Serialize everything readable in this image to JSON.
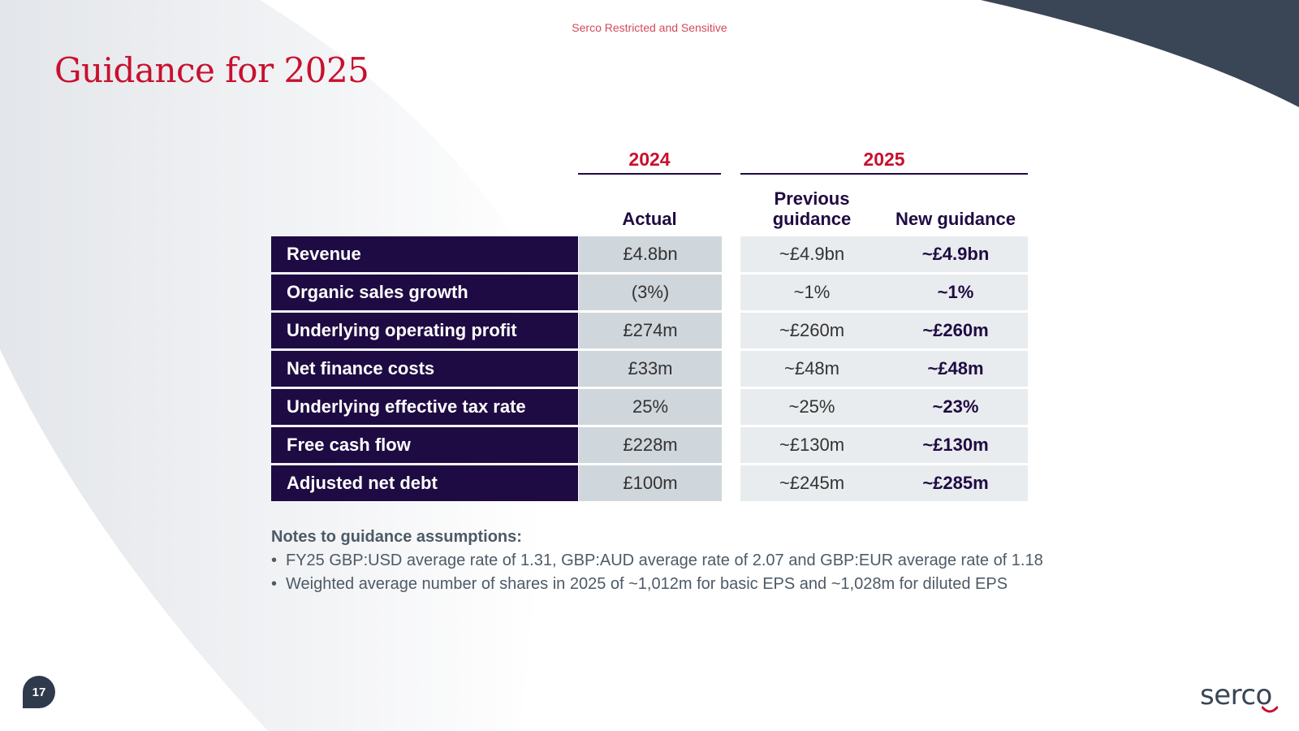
{
  "classification": "Serco Restricted and Sensitive",
  "title": "Guidance for 2025",
  "table": {
    "year_2024": "2024",
    "year_2025": "2025",
    "col_actual": "Actual",
    "col_previous": "Previous guidance",
    "col_new": "New guidance",
    "rows": [
      {
        "label": "Revenue",
        "actual": "£4.8bn",
        "previous": "~£4.9bn",
        "new": "~£4.9bn"
      },
      {
        "label": "Organic sales growth",
        "actual": "(3%)",
        "previous": "~1%",
        "new": "~1%"
      },
      {
        "label": "Underlying operating profit",
        "actual": "£274m",
        "previous": "~£260m",
        "new": "~£260m"
      },
      {
        "label": "Net finance costs",
        "actual": "£33m",
        "previous": "~£48m",
        "new": "~£48m"
      },
      {
        "label": "Underlying effective tax rate",
        "actual": "25%",
        "previous": "~25%",
        "new": "~23%"
      },
      {
        "label": "Free cash flow",
        "actual": "£228m",
        "previous": "~£130m",
        "new": "~£130m"
      },
      {
        "label": "Adjusted net debt",
        "actual": "£100m",
        "previous": "~£245m",
        "new": "~£285m"
      }
    ]
  },
  "notes": {
    "title": "Notes to guidance assumptions:",
    "items": [
      "FY25 GBP:USD average rate of 1.31, GBP:AUD average rate of 2.07 and GBP:EUR average rate of 1.18",
      "Weighted average number of shares in 2025 of ~1,012m for basic EPS and ~1,028m for diluted EPS"
    ]
  },
  "page_number": "17",
  "logo_text": "serco",
  "colors": {
    "accent_red": "#c8102e",
    "navy": "#1f0b43",
    "slate": "#2f3a4d"
  }
}
